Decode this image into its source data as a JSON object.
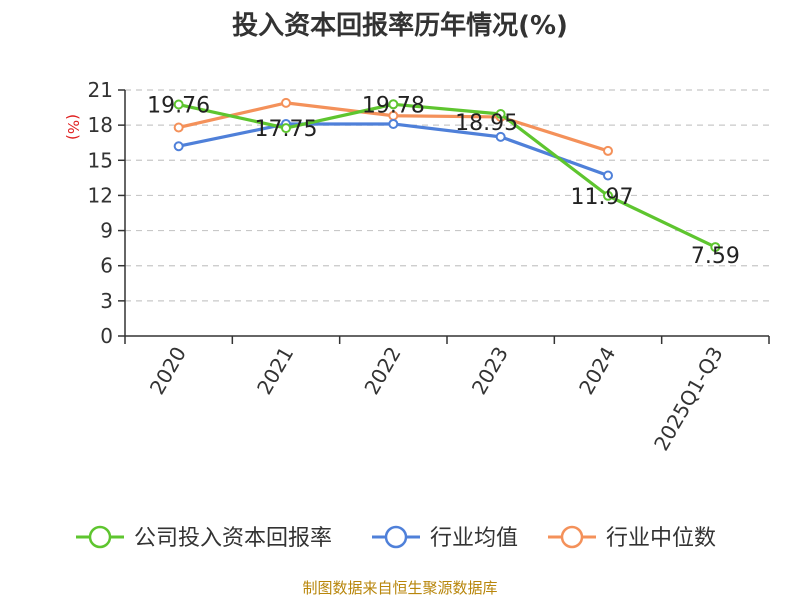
{
  "chart_data": {
    "type": "line",
    "title": "投入资本回报率历年情况(%)",
    "ylabel": "(%)",
    "ylim": [
      0,
      21
    ],
    "yticks": [
      0,
      3,
      6,
      9,
      12,
      15,
      18,
      21
    ],
    "categories": [
      "2020",
      "2021",
      "2022",
      "2023",
      "2024",
      "2025Q1-Q3"
    ],
    "series": [
      {
        "name": "公司投入资本回报率",
        "color": "#5ec52f",
        "values": [
          19.76,
          17.75,
          19.78,
          18.95,
          11.97,
          7.59
        ],
        "labels": [
          "19.76",
          "17.75",
          "19.78",
          "18.95",
          "11.97",
          "7.59"
        ]
      },
      {
        "name": "行业均值",
        "color": "#4f80d9",
        "values": [
          16.2,
          18.1,
          18.1,
          17.0,
          13.7,
          null
        ]
      },
      {
        "name": "行业中位数",
        "color": "#f4915a",
        "values": [
          17.8,
          19.9,
          18.8,
          18.7,
          15.8,
          null
        ]
      }
    ],
    "grid": true,
    "legend_position": "bottom"
  },
  "source": "制图数据来自恒生聚源数据库"
}
